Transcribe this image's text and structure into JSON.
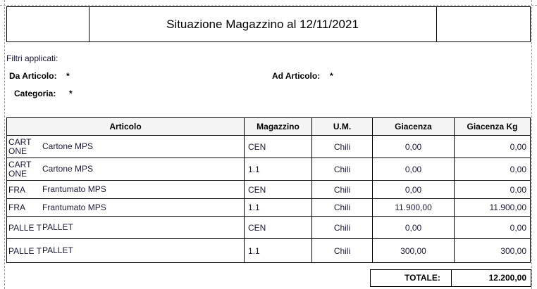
{
  "title": "Situazione  Magazzino al  12/11/2021",
  "filters": {
    "heading": "Filtri applicati:",
    "da_articolo_label": "Da Articolo:",
    "da_articolo_value": "*",
    "ad_articolo_label": "Ad Articolo:",
    "ad_articolo_value": "*",
    "categoria_label": "Categoria:",
    "categoria_value": "*"
  },
  "table": {
    "headers": [
      "Articolo",
      "Magazzino",
      "U.M.",
      "Giacenza",
      "Giacenza Kg"
    ],
    "rows": [
      {
        "code": "CART ONE",
        "desc": "Cartone MPS",
        "mag": "CEN",
        "um": "Chili",
        "giac": "0,00",
        "kg": "0,00"
      },
      {
        "code": "CART ONE",
        "desc": "Cartone MPS",
        "mag": "1.1",
        "um": "Chili",
        "giac": "0,00",
        "kg": "0,00"
      },
      {
        "code": "FRA",
        "desc": "Frantumato MPS",
        "mag": "CEN",
        "um": "Chili",
        "giac": "0,00",
        "kg": "0,00"
      },
      {
        "code": "FRA",
        "desc": "Frantumato MPS",
        "mag": "1.1",
        "um": "Chili",
        "giac": "11.900,00",
        "kg": "11.900,00"
      },
      {
        "code": "PALLE T",
        "desc": "PALLET",
        "mag": "CEN",
        "um": "Chili",
        "giac": "0,00",
        "kg": "0,00"
      },
      {
        "code": "PALLE T",
        "desc": "PALLET",
        "mag": "1.1",
        "um": "Chili",
        "giac": "300,00",
        "kg": "300,00"
      }
    ]
  },
  "total": {
    "label": "TOTALE:",
    "value": "12.200,00"
  }
}
